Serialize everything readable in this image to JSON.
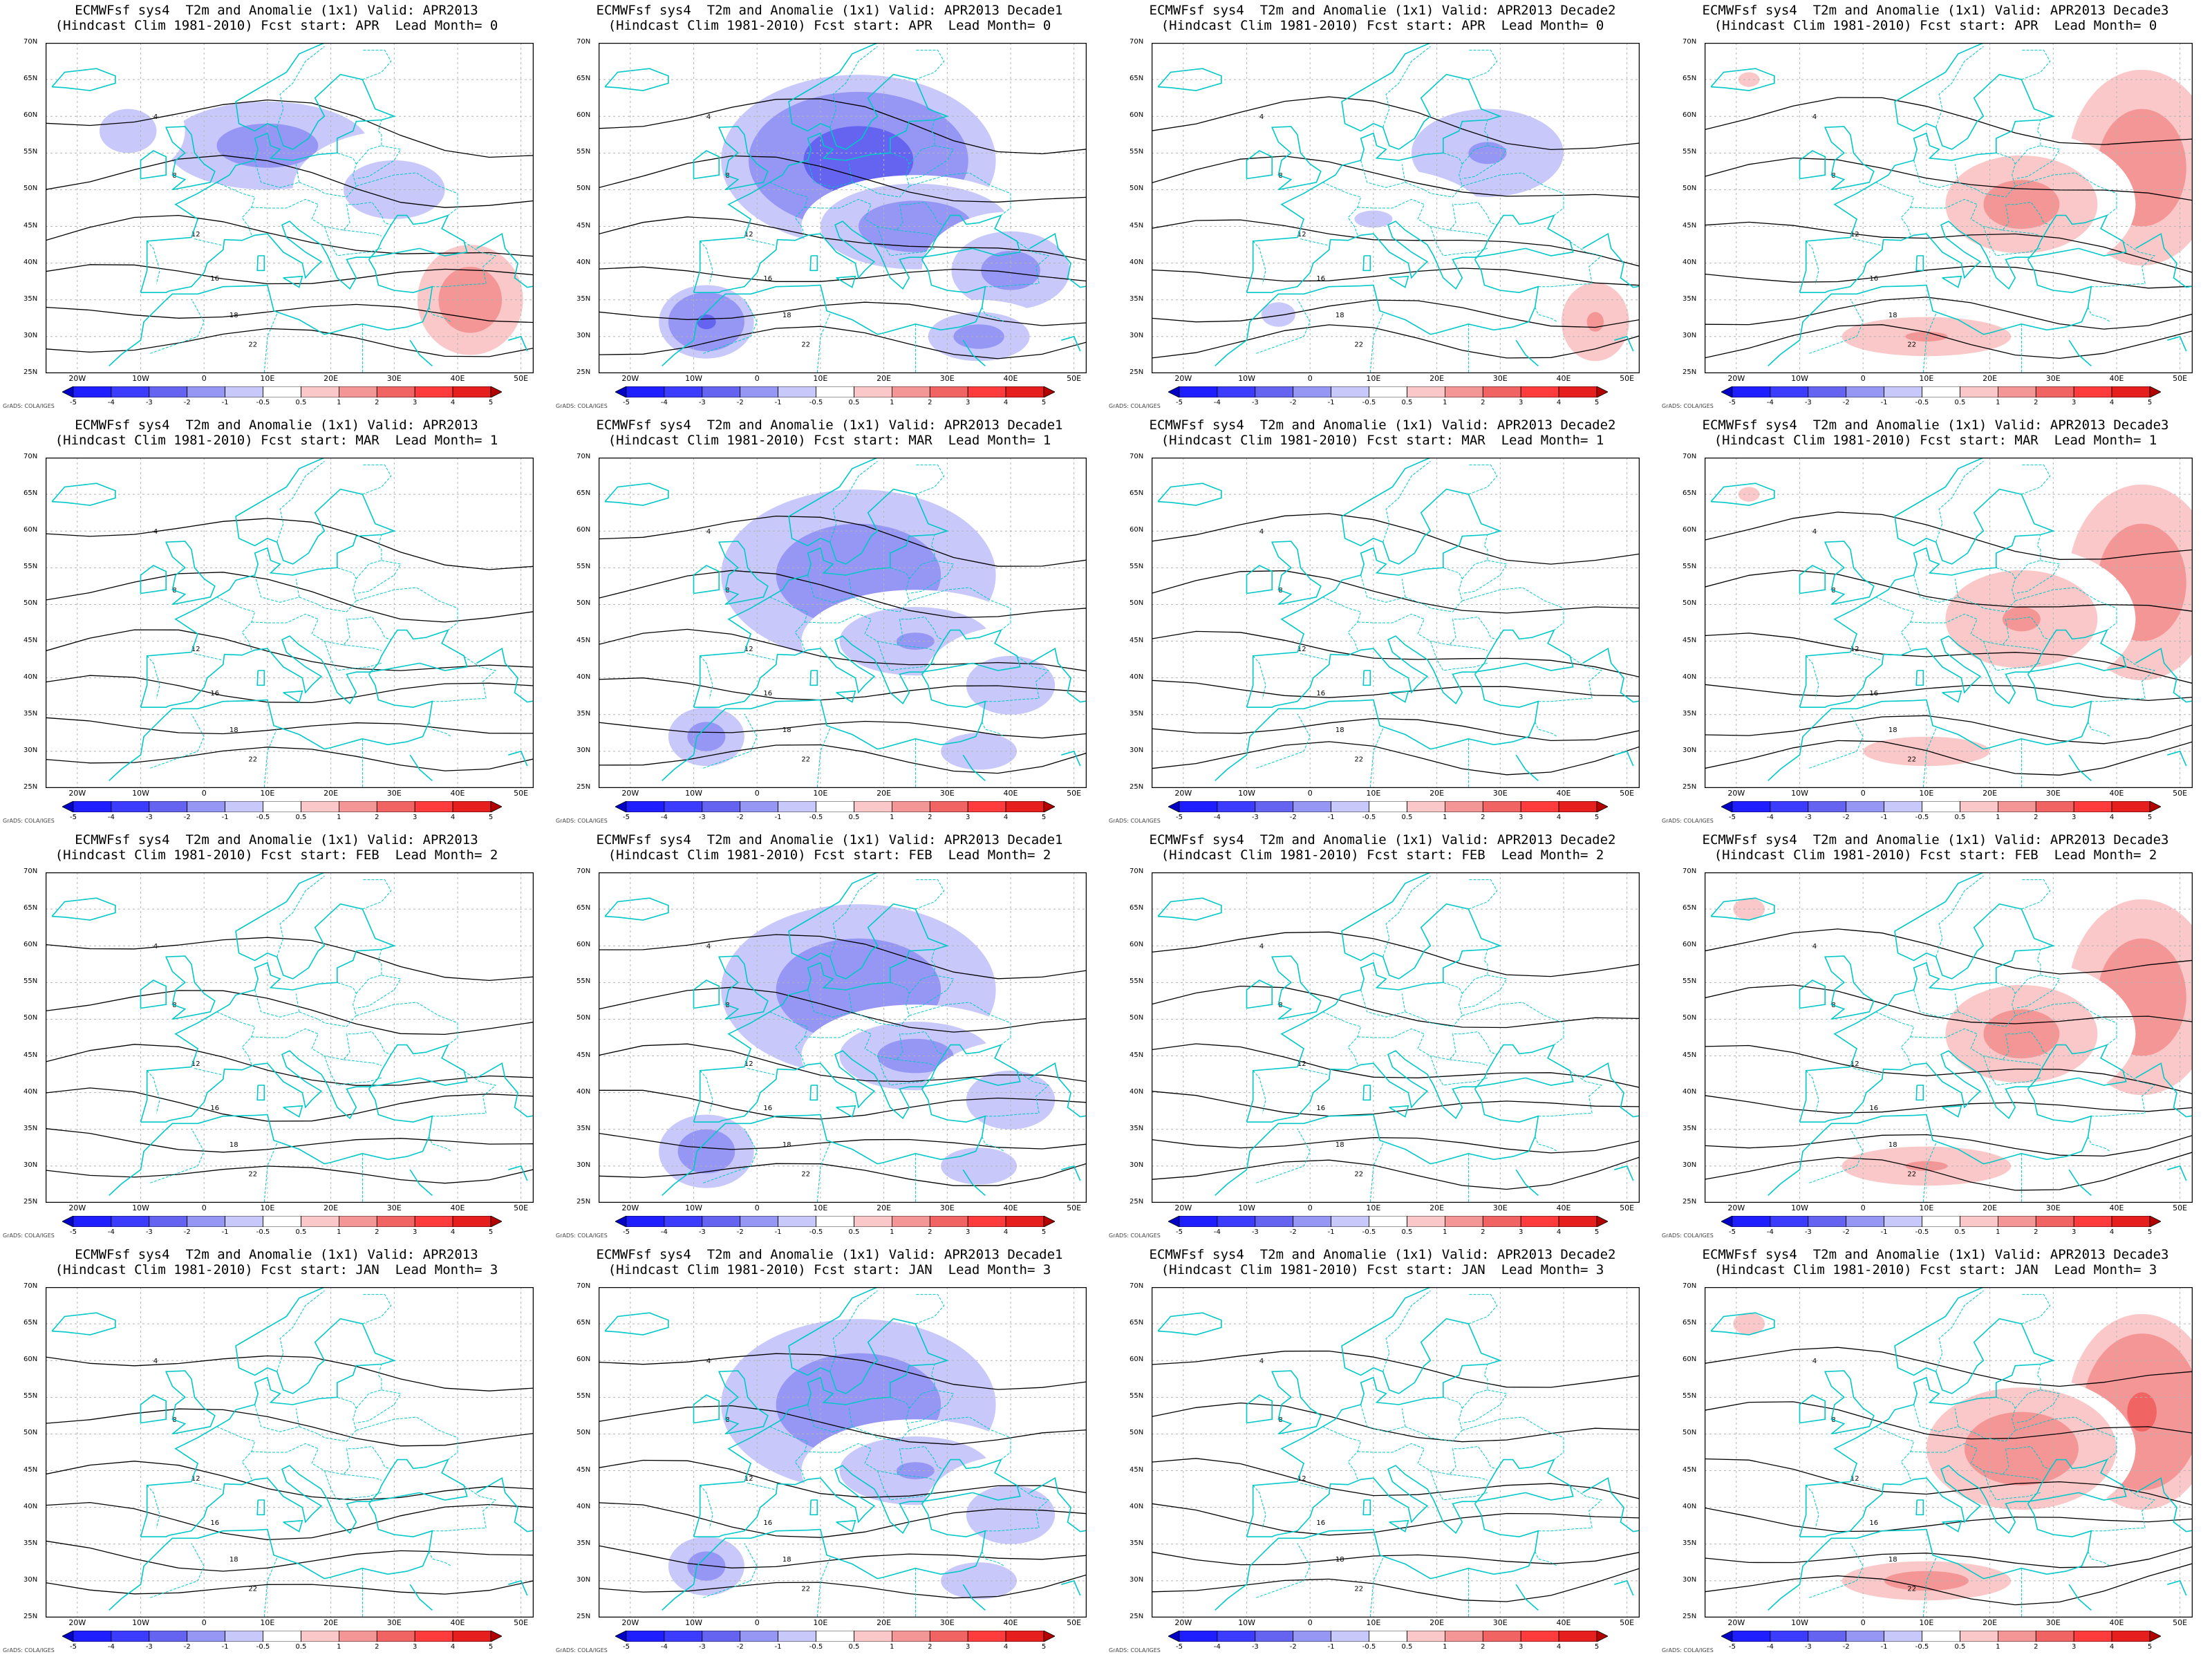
{
  "title_parts": {
    "model": "ECMWFsf sys4",
    "variable": "T2m and Anomalie (1x1)",
    "valid_prefix": "Valid:",
    "hindcast": "(Hindcast Clim 1981-2010)",
    "fcst_prefix": "Fcst start:",
    "lead_prefix": "Lead Month="
  },
  "valid_periods": [
    "APR2013",
    "APR2013 Decade1",
    "APR2013 Decade2",
    "APR2013 Decade3"
  ],
  "forecast_rows": [
    {
      "fcst_start": "APR",
      "lead": "0"
    },
    {
      "fcst_start": "MAR",
      "lead": "1"
    },
    {
      "fcst_start": "FEB",
      "lead": "2"
    },
    {
      "fcst_start": "JAN",
      "lead": "3"
    }
  ],
  "map": {
    "x_axis_labels": [
      "20W",
      "10W",
      "0",
      "10E",
      "20E",
      "30E",
      "40E",
      "50E"
    ],
    "y_axis_labels": [
      "70N",
      "65N",
      "60N",
      "55N",
      "50N",
      "45N",
      "40N",
      "35N",
      "30N",
      "25N"
    ],
    "lon_range": [
      -25,
      52
    ],
    "lat_range": [
      25,
      70
    ],
    "contour_labels": [
      "4",
      "8",
      "12",
      "16",
      "18",
      "22"
    ]
  },
  "colorbar": {
    "ticks": [
      "-5",
      "-4",
      "-3",
      "-2",
      "-1",
      "-0.5",
      "0.5",
      "1",
      "2",
      "3",
      "4",
      "5"
    ],
    "colors": [
      "#0000c8",
      "#1e1eff",
      "#3c3cff",
      "#6464f0",
      "#9696f5",
      "#c8c8fa",
      "#ffffff",
      "#fac8c8",
      "#f59696",
      "#f06464",
      "#ff3c3c",
      "#e61e1e",
      "#b40000"
    ]
  },
  "credit": "GrADS: COLA/IGES",
  "coast_color": "#00c8c8",
  "anomaly_levels": [
    [
      -1.2,
      -2.5,
      -1.0,
      1.8
    ],
    [
      -0.3,
      -1.6,
      -0.3,
      1.6
    ],
    [
      -0.3,
      -1.8,
      -0.4,
      2.0
    ],
    [
      -0.1,
      -1.6,
      -0.2,
      2.3
    ]
  ]
}
